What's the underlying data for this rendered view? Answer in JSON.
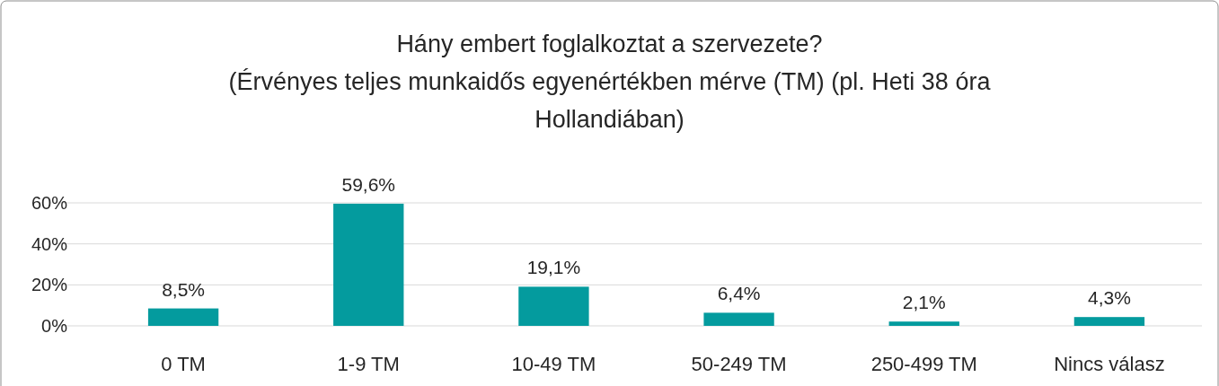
{
  "chart_data": {
    "type": "bar",
    "title": "Hány embert foglalkoztat a szervezete?",
    "subtitle": "(Érvényes teljes munkaidős egyenértékben mérve (TM) (pl. Heti 38 óra Hollandiában)",
    "categories": [
      "0 TM",
      "1-9 TM",
      "10-49 TM",
      "50-249 TM",
      "250-499 TM",
      "Nincs válasz"
    ],
    "values": [
      8.5,
      59.6,
      19.1,
      6.4,
      2.1,
      4.3
    ],
    "value_labels": [
      "8,5%",
      "59,6%",
      "19,1%",
      "6,4%",
      "2,1%",
      "4,3%"
    ],
    "color": "#049b9e",
    "ylim": [
      0,
      60
    ],
    "yticks": [
      {
        "value": 0,
        "label": "0%"
      },
      {
        "value": 20,
        "label": "20%"
      },
      {
        "value": 40,
        "label": "40%"
      },
      {
        "value": 60,
        "label": "60%"
      }
    ],
    "grid": "y"
  }
}
